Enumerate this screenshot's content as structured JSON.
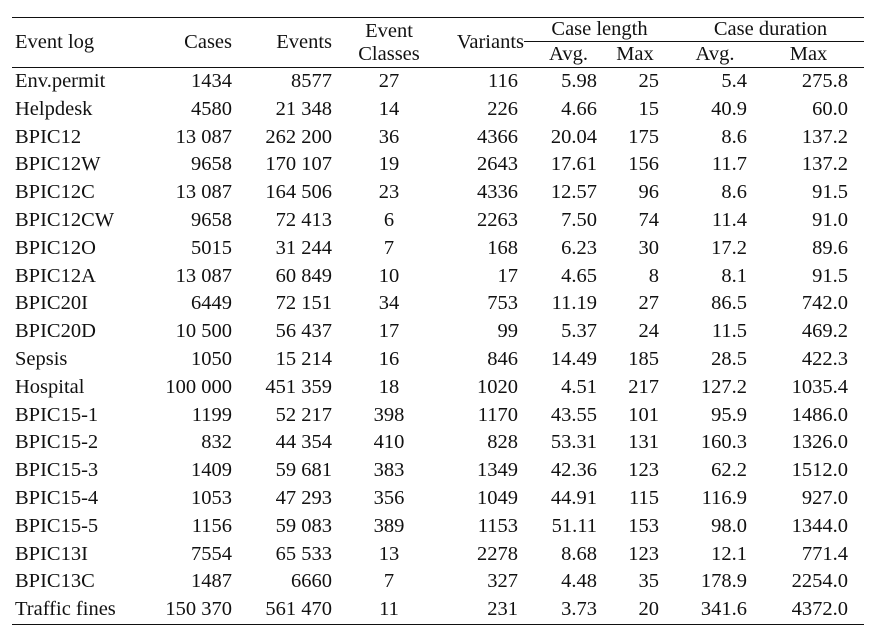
{
  "table": {
    "headers": {
      "event_log": "Event log",
      "cases": "Cases",
      "events": "Events",
      "event_classes_line1": "Event",
      "event_classes_line2": "Classes",
      "variants": "Variants",
      "case_length": "Case length",
      "case_duration": "Case duration",
      "length_avg": "Avg.",
      "length_max": "Max",
      "duration_avg": "Avg.",
      "duration_max": "Max"
    },
    "rows": [
      [
        "Env.permit",
        "1434",
        "8577",
        "27",
        "116",
        "5.98",
        "25",
        "5.4",
        "275.8"
      ],
      [
        "Helpdesk",
        "4580",
        "21 348",
        "14",
        "226",
        "4.66",
        "15",
        "40.9",
        "60.0"
      ],
      [
        "BPIC12",
        "13 087",
        "262 200",
        "36",
        "4366",
        "20.04",
        "175",
        "8.6",
        "137.2"
      ],
      [
        "BPIC12W",
        "9658",
        "170 107",
        "19",
        "2643",
        "17.61",
        "156",
        "11.7",
        "137.2"
      ],
      [
        "BPIC12C",
        "13 087",
        "164 506",
        "23",
        "4336",
        "12.57",
        "96",
        "8.6",
        "91.5"
      ],
      [
        "BPIC12CW",
        "9658",
        "72 413",
        "6",
        "2263",
        "7.50",
        "74",
        "11.4",
        "91.0"
      ],
      [
        "BPIC12O",
        "5015",
        "31 244",
        "7",
        "168",
        "6.23",
        "30",
        "17.2",
        "89.6"
      ],
      [
        "BPIC12A",
        "13 087",
        "60 849",
        "10",
        "17",
        "4.65",
        "8",
        "8.1",
        "91.5"
      ],
      [
        "BPIC20I",
        "6449",
        "72 151",
        "34",
        "753",
        "11.19",
        "27",
        "86.5",
        "742.0"
      ],
      [
        "BPIC20D",
        "10 500",
        "56 437",
        "17",
        "99",
        "5.37",
        "24",
        "11.5",
        "469.2"
      ],
      [
        "Sepsis",
        "1050",
        "15 214",
        "16",
        "846",
        "14.49",
        "185",
        "28.5",
        "422.3"
      ],
      [
        "Hospital",
        "100 000",
        "451 359",
        "18",
        "1020",
        "4.51",
        "217",
        "127.2",
        "1035.4"
      ],
      [
        "BPIC15-1",
        "1199",
        "52 217",
        "398",
        "1170",
        "43.55",
        "101",
        "95.9",
        "1486.0"
      ],
      [
        "BPIC15-2",
        "832",
        "44 354",
        "410",
        "828",
        "53.31",
        "131",
        "160.3",
        "1326.0"
      ],
      [
        "BPIC15-3",
        "1409",
        "59 681",
        "383",
        "1349",
        "42.36",
        "123",
        "62.2",
        "1512.0"
      ],
      [
        "BPIC15-4",
        "1053",
        "47 293",
        "356",
        "1049",
        "44.91",
        "115",
        "116.9",
        "927.0"
      ],
      [
        "BPIC15-5",
        "1156",
        "59 083",
        "389",
        "1153",
        "51.11",
        "153",
        "98.0",
        "1344.0"
      ],
      [
        "BPIC13I",
        "7554",
        "65 533",
        "13",
        "2278",
        "8.68",
        "123",
        "12.1",
        "771.4"
      ],
      [
        "BPIC13C",
        "1487",
        "6660",
        "7",
        "327",
        "4.48",
        "35",
        "178.9",
        "2254.0"
      ],
      [
        "Traffic fines",
        "150 370",
        "561 470",
        "11",
        "231",
        "3.73",
        "20",
        "341.6",
        "4372.0"
      ]
    ]
  }
}
